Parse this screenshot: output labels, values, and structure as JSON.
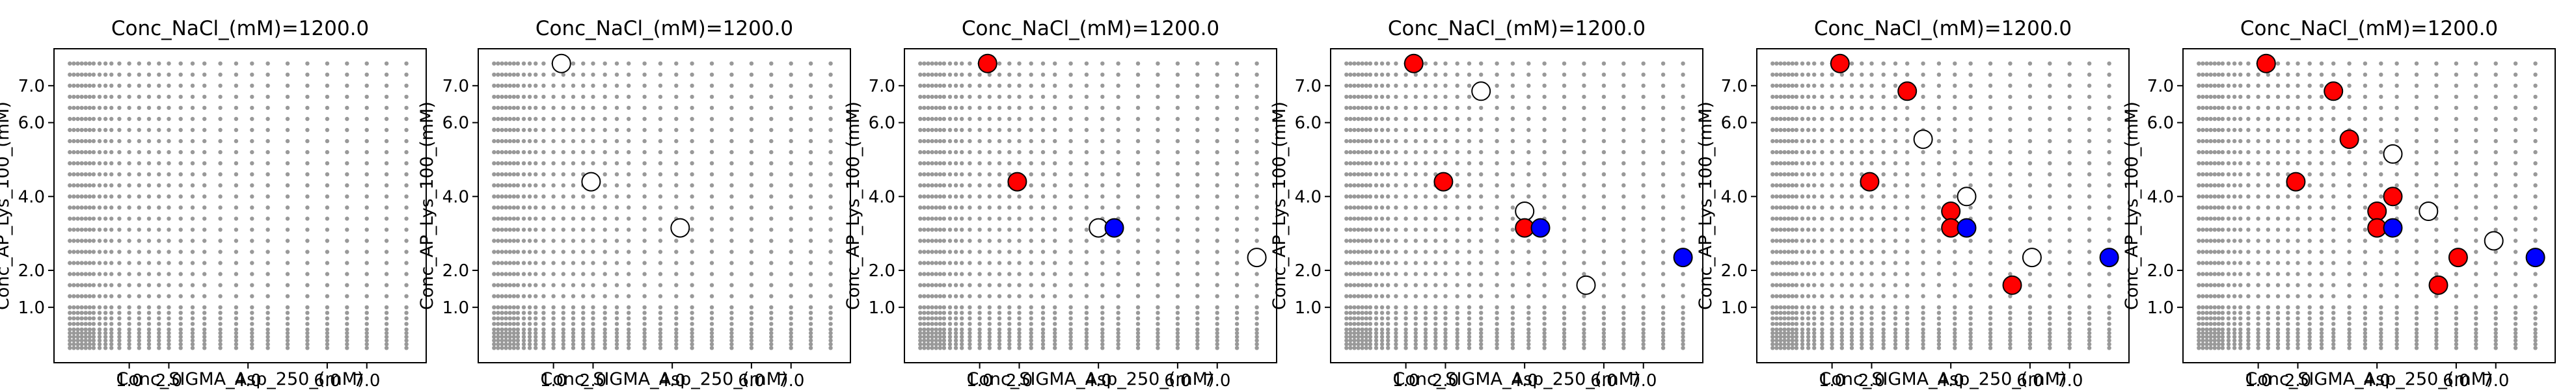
{
  "figure": {
    "colors": {
      "grid_point": "#999999",
      "red": "#ff0000",
      "blue": "#0000ff",
      "white": "#ffffff",
      "marker_edge": "#000000",
      "axes": "#000000"
    }
  },
  "chart_data": [
    {
      "type": "scatter",
      "title": "Conc_NaCl_(mM)=1200.0",
      "xlabel": "Conc_SIGMA_Asp_250_(mM)",
      "ylabel": "Conc_AP_Lys_100_(mM)",
      "xlim": [
        -0.9,
        8.5
      ],
      "ylim": [
        -0.5,
        8.0
      ],
      "xticks": [
        1.0,
        2.0,
        4.0,
        6.0,
        7.0
      ],
      "xtick_labels": [
        "1.0",
        "2.0",
        "4.0",
        "6.0",
        "7.0"
      ],
      "yticks": [
        1.0,
        2.0,
        4.0,
        6.0,
        7.0
      ],
      "ytick_labels": [
        "1.0",
        "2.0",
        "4.0",
        "6.0",
        "7.0"
      ],
      "grid": false,
      "points": []
    },
    {
      "type": "scatter",
      "title": "Conc_NaCl_(mM)=1200.0",
      "xlabel": "Conc_SIGMA_Asp_250_(mM)",
      "ylabel": "Conc_AP_Lys_100_(mM)",
      "xlim": [
        -0.9,
        8.5
      ],
      "ylim": [
        -0.5,
        8.0
      ],
      "xticks": [
        1.0,
        2.0,
        4.0,
        6.0,
        7.0
      ],
      "xtick_labels": [
        "1.0",
        "2.0",
        "4.0",
        "6.0",
        "7.0"
      ],
      "yticks": [
        1.0,
        2.0,
        4.0,
        6.0,
        7.0
      ],
      "ytick_labels": [
        "1.0",
        "2.0",
        "4.0",
        "6.0",
        "7.0"
      ],
      "grid": false,
      "points": [
        {
          "x": 1.2,
          "y": 7.6,
          "color": "white"
        },
        {
          "x": 1.95,
          "y": 4.4,
          "color": "white"
        },
        {
          "x": 4.2,
          "y": 3.15,
          "color": "white"
        }
      ]
    },
    {
      "type": "scatter",
      "title": "Conc_NaCl_(mM)=1200.0",
      "xlabel": "Conc_SIGMA_Asp_250_(mM)",
      "ylabel": "Conc_AP_Lys_100_(mM)",
      "xlim": [
        -0.9,
        8.5
      ],
      "ylim": [
        -0.5,
        8.0
      ],
      "xticks": [
        1.0,
        2.0,
        4.0,
        6.0,
        7.0
      ],
      "xtick_labels": [
        "1.0",
        "2.0",
        "4.0",
        "6.0",
        "7.0"
      ],
      "yticks": [
        1.0,
        2.0,
        4.0,
        6.0,
        7.0
      ],
      "ytick_labels": [
        "1.0",
        "2.0",
        "4.0",
        "6.0",
        "7.0"
      ],
      "grid": false,
      "points": [
        {
          "x": 1.2,
          "y": 7.6,
          "color": "red"
        },
        {
          "x": 1.95,
          "y": 4.4,
          "color": "red"
        },
        {
          "x": 4.0,
          "y": 3.15,
          "color": "white"
        },
        {
          "x": 4.4,
          "y": 3.15,
          "color": "blue"
        },
        {
          "x": 8.0,
          "y": 2.35,
          "color": "white"
        }
      ]
    },
    {
      "type": "scatter",
      "title": "Conc_NaCl_(mM)=1200.0",
      "xlabel": "Conc_SIGMA_Asp_250_(mM)",
      "ylabel": "Conc_AP_Lys_100_(mM)",
      "xlim": [
        -0.9,
        8.5
      ],
      "ylim": [
        -0.5,
        8.0
      ],
      "xticks": [
        1.0,
        2.0,
        4.0,
        6.0,
        7.0
      ],
      "xtick_labels": [
        "1.0",
        "2.0",
        "4.0",
        "6.0",
        "7.0"
      ],
      "yticks": [
        1.0,
        2.0,
        4.0,
        6.0,
        7.0
      ],
      "ytick_labels": [
        "1.0",
        "2.0",
        "4.0",
        "6.0",
        "7.0"
      ],
      "grid": false,
      "points": [
        {
          "x": 1.2,
          "y": 7.6,
          "color": "red"
        },
        {
          "x": 1.95,
          "y": 4.4,
          "color": "red"
        },
        {
          "x": 2.9,
          "y": 6.85,
          "color": "white"
        },
        {
          "x": 4.0,
          "y": 3.6,
          "color": "white"
        },
        {
          "x": 4.0,
          "y": 3.15,
          "color": "red"
        },
        {
          "x": 4.4,
          "y": 3.15,
          "color": "blue"
        },
        {
          "x": 5.55,
          "y": 1.6,
          "color": "white"
        },
        {
          "x": 8.0,
          "y": 2.35,
          "color": "blue"
        }
      ]
    },
    {
      "type": "scatter",
      "title": "Conc_NaCl_(mM)=1200.0",
      "xlabel": "Conc_SIGMA_Asp_250_(mM)",
      "ylabel": "Conc_AP_Lys_100_(mM)",
      "xlim": [
        -0.9,
        8.5
      ],
      "ylim": [
        -0.5,
        8.0
      ],
      "xticks": [
        1.0,
        2.0,
        4.0,
        6.0,
        7.0
      ],
      "xtick_labels": [
        "1.0",
        "2.0",
        "4.0",
        "6.0",
        "7.0"
      ],
      "yticks": [
        1.0,
        2.0,
        4.0,
        6.0,
        7.0
      ],
      "ytick_labels": [
        "1.0",
        "2.0",
        "4.0",
        "6.0",
        "7.0"
      ],
      "grid": false,
      "points": [
        {
          "x": 1.2,
          "y": 7.6,
          "color": "red"
        },
        {
          "x": 1.95,
          "y": 4.4,
          "color": "red"
        },
        {
          "x": 2.9,
          "y": 6.85,
          "color": "red"
        },
        {
          "x": 3.3,
          "y": 5.55,
          "color": "white"
        },
        {
          "x": 4.0,
          "y": 3.6,
          "color": "red"
        },
        {
          "x": 4.0,
          "y": 3.15,
          "color": "red"
        },
        {
          "x": 4.4,
          "y": 4.0,
          "color": "white"
        },
        {
          "x": 4.4,
          "y": 3.15,
          "color": "blue"
        },
        {
          "x": 5.55,
          "y": 1.6,
          "color": "red"
        },
        {
          "x": 6.05,
          "y": 2.35,
          "color": "white"
        },
        {
          "x": 8.0,
          "y": 2.35,
          "color": "blue"
        }
      ]
    },
    {
      "type": "scatter",
      "title": "Conc_NaCl_(mM)=1200.0",
      "xlabel": "Conc_SIGMA_Asp_250_(mM)",
      "ylabel": "Conc_AP_Lys_100_(mM)",
      "xlim": [
        -0.9,
        8.5
      ],
      "ylim": [
        -0.5,
        8.0
      ],
      "xticks": [
        1.0,
        2.0,
        4.0,
        6.0,
        7.0
      ],
      "xtick_labels": [
        "1.0",
        "2.0",
        "4.0",
        "6.0",
        "7.0"
      ],
      "yticks": [
        1.0,
        2.0,
        4.0,
        6.0,
        7.0
      ],
      "ytick_labels": [
        "1.0",
        "2.0",
        "4.0",
        "6.0",
        "7.0"
      ],
      "grid": false,
      "points": [
        {
          "x": 1.2,
          "y": 7.6,
          "color": "red"
        },
        {
          "x": 1.95,
          "y": 4.4,
          "color": "red"
        },
        {
          "x": 2.9,
          "y": 6.85,
          "color": "red"
        },
        {
          "x": 3.3,
          "y": 5.55,
          "color": "red"
        },
        {
          "x": 4.0,
          "y": 3.6,
          "color": "red"
        },
        {
          "x": 4.0,
          "y": 3.15,
          "color": "red"
        },
        {
          "x": 4.4,
          "y": 4.0,
          "color": "red"
        },
        {
          "x": 4.4,
          "y": 5.15,
          "color": "white"
        },
        {
          "x": 4.4,
          "y": 3.15,
          "color": "blue"
        },
        {
          "x": 5.3,
          "y": 3.6,
          "color": "white"
        },
        {
          "x": 5.55,
          "y": 1.6,
          "color": "red"
        },
        {
          "x": 6.05,
          "y": 2.35,
          "color": "red"
        },
        {
          "x": 6.95,
          "y": 2.8,
          "color": "white"
        },
        {
          "x": 8.0,
          "y": 2.35,
          "color": "blue"
        }
      ]
    }
  ]
}
